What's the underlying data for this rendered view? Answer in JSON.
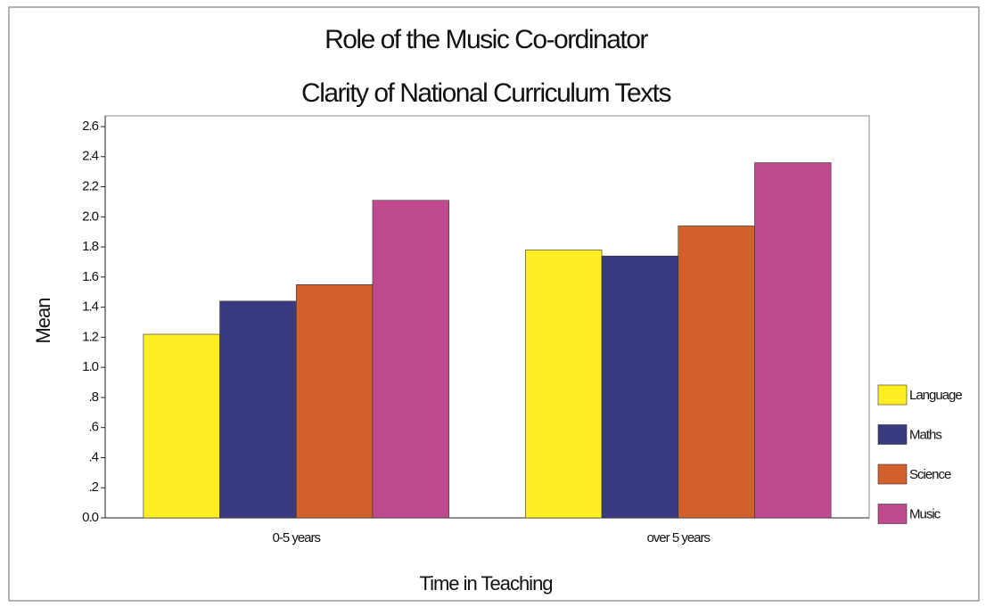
{
  "chart_data": {
    "type": "bar",
    "title": "Role of the Music Co-ordinator",
    "subtitle": "Clarity of National Curriculum Texts",
    "x_label": "Time in Teaching",
    "y_label": "Mean",
    "categories": [
      "0-5 years",
      "over 5 years"
    ],
    "series": [
      {
        "name": "Language",
        "color": "#ffee22",
        "values": [
          1.22,
          1.78
        ]
      },
      {
        "name": "Maths",
        "color": "#3a3a80",
        "values": [
          1.44,
          1.74
        ]
      },
      {
        "name": "Science",
        "color": "#d2602a",
        "values": [
          1.55,
          1.94
        ]
      },
      {
        "name": "Music",
        "color": "#c04a90",
        "values": [
          2.11,
          2.36
        ]
      }
    ],
    "ylim": [
      0,
      2.6
    ],
    "yticks": [
      {
        "value": 0,
        "label": "0.0"
      },
      {
        "value": 0.2,
        "label": ".2"
      },
      {
        "value": 0.4,
        "label": ".4"
      },
      {
        "value": 0.6,
        "label": ".6"
      },
      {
        "value": 0.8,
        "label": ".8"
      },
      {
        "value": 1,
        "label": "1.0"
      },
      1.2,
      1.4,
      1.6,
      1.8,
      {
        "value": 2,
        "label": "2.0"
      },
      2.2,
      2.4,
      2.6
    ],
    "legend": "right"
  }
}
